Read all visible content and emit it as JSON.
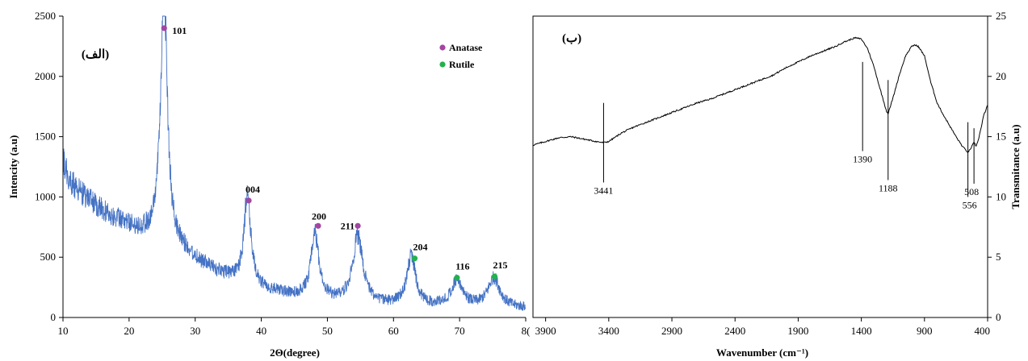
{
  "chart_data": [
    {
      "type": "line",
      "panel_label": "(الف)",
      "xlabel": "2Θ(degree)",
      "ylabel": "Intencity (a.u)",
      "xlim": [
        10,
        80
      ],
      "ylim": [
        0,
        2500
      ],
      "x_ticks": [
        "10",
        "20",
        "30",
        "40",
        "50",
        "60",
        "70",
        "8("
      ],
      "y_ticks": [
        "0",
        "500",
        "1000",
        "1500",
        "2000",
        "2500"
      ],
      "grid": false,
      "line_color": "#4472c4",
      "baseline_points": [
        [
          10,
          1300
        ],
        [
          11,
          1130
        ],
        [
          13,
          1020
        ],
        [
          15,
          930
        ],
        [
          17,
          850
        ],
        [
          19,
          790
        ],
        [
          21,
          740
        ],
        [
          23,
          700
        ],
        [
          24,
          720
        ]
      ],
      "peaks": [
        {
          "center": 25.3,
          "height": 2310,
          "width": 0.55
        },
        {
          "center": 37.9,
          "height": 860,
          "width": 0.6
        },
        {
          "center": 48.1,
          "height": 600,
          "width": 0.7
        },
        {
          "center": 54.6,
          "height": 590,
          "width": 0.95
        },
        {
          "center": 62.7,
          "height": 440,
          "width": 0.8
        },
        {
          "center": 69.6,
          "height": 240,
          "width": 1.1
        },
        {
          "center": 75.2,
          "height": 270,
          "width": 1.1
        }
      ],
      "peak_markers": [
        {
          "label": "101",
          "x": 25.3,
          "y": 2400,
          "phase": "Anatase"
        },
        {
          "label": "004",
          "x": 38.1,
          "y": 970,
          "phase": "Anatase"
        },
        {
          "label": "200",
          "x": 48.6,
          "y": 760,
          "phase": "Anatase"
        },
        {
          "label": "211",
          "x": 54.6,
          "y": 760,
          "phase": "Anatase"
        },
        {
          "label": "204",
          "x": 63.2,
          "y": 490,
          "phase": "Rutile"
        },
        {
          "label": "116",
          "x": 69.6,
          "y": 330,
          "phase": "Rutile"
        },
        {
          "label": "215",
          "x": 75.3,
          "y": 340,
          "phase": "Rutile"
        }
      ],
      "legend": {
        "placement": "top-right",
        "entries": [
          {
            "name": "Anatase",
            "color": "#a346a3"
          },
          {
            "name": "Rutile",
            "color": "#22b24c"
          }
        ]
      }
    },
    {
      "type": "line",
      "panel_label": "(ب)",
      "xlabel": "Wavenumber  (cm⁻¹)",
      "ylabel": "Transmitance  (a.u)",
      "xlim": [
        4000,
        400
      ],
      "ylim": [
        0,
        25
      ],
      "x_ticks": [
        "3900",
        "3400",
        "2900",
        "2400",
        "1900",
        "1400",
        "900",
        "400"
      ],
      "y_ticks": [
        "0",
        "5",
        "10",
        "15",
        "20",
        "25"
      ],
      "grid": false,
      "line_color": "#000000",
      "series": [
        {
          "x": [
            4000,
            3900,
            3800,
            3700,
            3600,
            3500,
            3441,
            3400,
            3300,
            3200,
            3100,
            3000,
            2900,
            2800,
            2700,
            2600,
            2500,
            2400,
            2300,
            2200,
            2100,
            2000,
            1900,
            1800,
            1700,
            1650,
            1600,
            1550,
            1500,
            1450,
            1400,
            1350,
            1300,
            1250,
            1200,
            1188,
            1150,
            1100,
            1050,
            1000,
            980,
            950,
            900,
            850,
            800,
            750,
            700,
            650,
            600,
            556,
            540,
            520,
            508,
            490,
            470,
            450,
            430,
            400
          ],
          "y": [
            14.3,
            14.6,
            14.9,
            15.0,
            14.8,
            14.6,
            14.5,
            14.6,
            15.3,
            15.8,
            16.2,
            16.6,
            17.0,
            17.4,
            17.8,
            18.1,
            18.5,
            18.9,
            19.3,
            19.7,
            20.1,
            20.7,
            21.2,
            21.7,
            22.1,
            22.3,
            22.5,
            22.8,
            23.0,
            23.2,
            23.1,
            22.3,
            20.8,
            18.9,
            17.1,
            16.9,
            18.2,
            20.1,
            21.7,
            22.5,
            22.6,
            22.5,
            21.7,
            19.5,
            17.8,
            16.8,
            15.9,
            15.0,
            14.2,
            13.7,
            13.9,
            14.3,
            14.5,
            14.2,
            14.9,
            15.8,
            16.8,
            17.6
          ]
        }
      ],
      "band_annotations": [
        {
          "label": "3441",
          "x": 3441,
          "y_top": 17.8,
          "y_bottom": 11.2
        },
        {
          "label": "1390",
          "x": 1390,
          "y_top": 21.2,
          "y_bottom": 13.8
        },
        {
          "label": "1188",
          "x": 1188,
          "y_top": 19.7,
          "y_bottom": 11.4
        },
        {
          "label": "556",
          "x": 556,
          "y_top": 16.2,
          "y_bottom": 10.0
        },
        {
          "label": "508",
          "x": 508,
          "y_top": 15.7,
          "y_bottom": 11.1
        }
      ]
    }
  ]
}
